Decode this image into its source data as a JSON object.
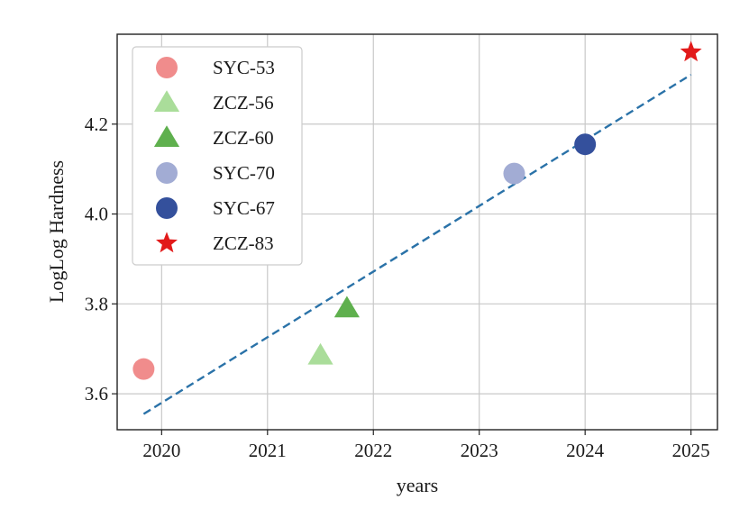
{
  "chart_data": {
    "type": "scatter",
    "title": "",
    "xlabel": "years",
    "ylabel": "LogLog Hardness",
    "xlim": [
      2019.58,
      2025.25
    ],
    "ylim": [
      3.52,
      4.4
    ],
    "xticks": [
      2020,
      2021,
      2022,
      2023,
      2024,
      2025
    ],
    "yticks": [
      3.6,
      3.8,
      4.0,
      4.2
    ],
    "xtick_labels": [
      "2020",
      "2021",
      "2022",
      "2023",
      "2024",
      "2025"
    ],
    "ytick_labels": [
      "3.6",
      "3.8",
      "4.0",
      "4.2"
    ],
    "grid": true,
    "legend_position": "upper-left",
    "series": [
      {
        "name": "SYC-53",
        "marker": "circle",
        "color": "#f08c8c",
        "x": 2019.83,
        "y": 3.655
      },
      {
        "name": "ZCZ-56",
        "marker": "triangle",
        "color": "#aadd9a",
        "x": 2021.5,
        "y": 3.685
      },
      {
        "name": "ZCZ-60",
        "marker": "triangle",
        "color": "#5fb04e",
        "x": 2021.75,
        "y": 3.79
      },
      {
        "name": "SYC-70",
        "marker": "circle",
        "color": "#a2acd4",
        "x": 2023.33,
        "y": 4.09
      },
      {
        "name": "SYC-67",
        "marker": "circle",
        "color": "#34509c",
        "x": 2024.0,
        "y": 4.155
      },
      {
        "name": "ZCZ-83",
        "marker": "star",
        "color": "#e21a1a",
        "x": 2025.0,
        "y": 4.36
      }
    ],
    "trendline": {
      "style": "dashed",
      "color": "#2a72a8",
      "x": [
        2019.83,
        2025.0
      ],
      "y": [
        3.555,
        4.31
      ]
    }
  }
}
